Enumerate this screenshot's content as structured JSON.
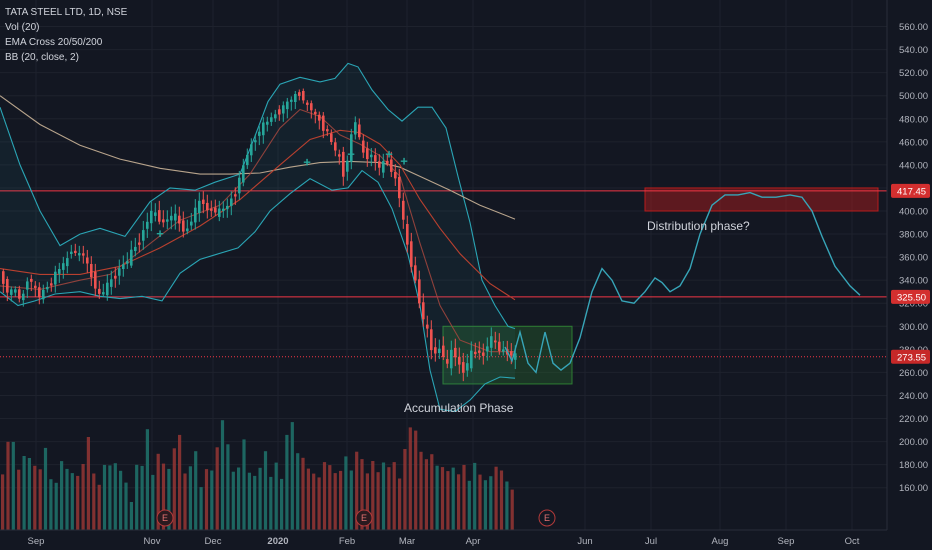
{
  "legend": {
    "symbol": "TATA STEEL LTD, 1D, NSE",
    "vol": "Vol (20)",
    "ema": "EMA Cross 20/50/200",
    "bb": "BB (20, close, 2)"
  },
  "colors": {
    "background": "#131722",
    "up": "#26a69a",
    "down": "#ef5350",
    "grid": "#1e222d",
    "axis_text": "#b2b5be",
    "bb_line": "#2aa5b5",
    "ema20": "#a5463e",
    "ema50": "#b8402f",
    "ema200": "#b8a48c",
    "level_line": "#f23645",
    "projection": "#37a5b8",
    "accumulation_box": "#2e7d32",
    "distribution_box": "#b71c1c"
  },
  "chart_data": {
    "type": "candlestick",
    "title": "TATA STEEL LTD, 1D, NSE",
    "y_axis": {
      "range": [
        145,
        570
      ],
      "ticks": [
        160,
        180,
        200,
        220,
        240,
        260,
        280,
        300,
        320,
        340,
        360,
        380,
        400,
        420,
        440,
        460,
        480,
        500,
        520,
        540,
        560
      ],
      "tick_labels": [
        "160.00",
        "180.00",
        "200.00",
        "220.00",
        "240.00",
        "260.00",
        "280.00",
        "300.00",
        "320.00",
        "340.00",
        "360.00",
        "380.00",
        "400.00",
        "420.00",
        "440.00",
        "460.00",
        "480.00",
        "500.00",
        "520.00",
        "540.00",
        "560.00"
      ]
    },
    "x_axis": {
      "labels": [
        "Sep",
        "Nov",
        "Dec",
        "2020",
        "Feb",
        "Mar",
        "Apr",
        "Jun",
        "Jul",
        "Aug",
        "Sep",
        "Oct"
      ]
    },
    "price_path": [
      [
        0,
        350
      ],
      [
        6,
        338
      ],
      [
        12,
        328
      ],
      [
        18,
        332
      ],
      [
        24,
        320
      ],
      [
        30,
        342
      ],
      [
        36,
        336
      ],
      [
        42,
        326
      ],
      [
        50,
        334
      ],
      [
        60,
        348
      ],
      [
        70,
        358
      ],
      [
        75,
        368
      ],
      [
        80,
        360
      ],
      [
        85,
        366
      ],
      [
        90,
        352
      ],
      [
        95,
        342
      ],
      [
        100,
        330
      ],
      [
        104,
        323
      ],
      [
        108,
        335
      ],
      [
        115,
        340
      ],
      [
        122,
        350
      ],
      [
        130,
        357
      ],
      [
        138,
        370
      ],
      [
        145,
        380
      ],
      [
        150,
        392
      ],
      [
        155,
        400
      ],
      [
        160,
        395
      ],
      [
        168,
        388
      ],
      [
        175,
        398
      ],
      [
        182,
        390
      ],
      [
        188,
        380
      ],
      [
        195,
        395
      ],
      [
        200,
        405
      ],
      [
        205,
        410
      ],
      [
        210,
        400
      ],
      [
        215,
        402
      ],
      [
        220,
        398
      ],
      [
        228,
        402
      ],
      [
        235,
        412
      ],
      [
        240,
        422
      ],
      [
        245,
        435
      ],
      [
        250,
        450
      ],
      [
        256,
        460
      ],
      [
        262,
        470
      ],
      [
        270,
        478
      ],
      [
        280,
        485
      ],
      [
        288,
        492
      ],
      [
        295,
        498
      ],
      [
        302,
        502
      ],
      [
        308,
        495
      ],
      [
        312,
        490
      ],
      [
        318,
        484
      ],
      [
        324,
        475
      ],
      [
        330,
        468
      ],
      [
        336,
        455
      ],
      [
        342,
        448
      ],
      [
        346,
        432
      ],
      [
        350,
        445
      ],
      [
        355,
        470
      ],
      [
        358,
        478
      ],
      [
        362,
        462
      ],
      [
        366,
        450
      ],
      [
        370,
        448
      ],
      [
        375,
        448
      ],
      [
        380,
        440
      ],
      [
        384,
        435
      ],
      [
        388,
        446
      ],
      [
        392,
        440
      ],
      [
        396,
        430
      ],
      [
        400,
        425
      ],
      [
        404,
        400
      ],
      [
        408,
        380
      ],
      [
        412,
        360
      ],
      [
        416,
        348
      ],
      [
        420,
        330
      ],
      [
        424,
        312
      ],
      [
        428,
        300
      ],
      [
        432,
        290
      ],
      [
        436,
        272
      ],
      [
        440,
        282
      ],
      [
        445,
        278
      ],
      [
        450,
        265
      ],
      [
        455,
        282
      ],
      [
        460,
        270
      ],
      [
        465,
        260
      ],
      [
        470,
        268
      ],
      [
        475,
        278
      ],
      [
        480,
        280
      ],
      [
        485,
        272
      ],
      [
        490,
        285
      ],
      [
        495,
        290
      ],
      [
        500,
        282
      ],
      [
        505,
        276
      ],
      [
        510,
        278
      ],
      [
        515,
        274
      ]
    ],
    "volume_scale_max": 4.4,
    "volume_heights_pct": [
      0.5,
      0.65,
      0.75,
      0.45,
      0.6,
      0.55,
      0.5,
      0.48,
      0.62,
      0.42,
      0.35,
      0.6,
      0.45,
      0.5,
      0.4,
      0.55,
      0.7,
      0.45,
      0.35,
      0.5,
      0.52,
      0.5,
      0.5,
      0.35,
      0.25,
      0.48,
      0.55,
      0.75,
      0.45,
      0.58,
      0.52,
      0.48,
      0.62,
      0.78,
      0.42,
      0.55,
      0.58,
      0.38,
      0.45,
      0.5,
      0.62,
      0.88,
      0.66,
      0.45,
      0.5,
      0.68,
      0.48,
      0.4,
      0.55,
      0.58,
      0.46,
      0.5,
      0.42,
      0.72,
      0.85,
      0.6,
      0.55,
      0.5,
      0.42,
      0.45,
      0.5,
      0.58,
      0.42,
      0.5,
      0.55,
      0.48,
      0.6,
      0.55,
      0.45,
      0.52,
      0.48,
      0.5,
      0.55,
      0.5,
      0.45,
      0.6,
      0.85,
      0.75,
      0.62,
      0.55,
      0.58,
      0.52,
      0.47,
      0.5,
      0.46,
      0.5,
      0.48,
      0.42,
      0.5,
      0.45,
      0.38,
      0.42,
      0.5,
      0.45,
      0.4,
      0.3
    ],
    "ema200_path": [
      [
        0,
        500
      ],
      [
        40,
        475
      ],
      [
        80,
        457
      ],
      [
        120,
        445
      ],
      [
        160,
        437
      ],
      [
        200,
        432
      ],
      [
        230,
        432
      ],
      [
        260,
        433
      ],
      [
        290,
        438
      ],
      [
        320,
        442
      ],
      [
        350,
        443
      ],
      [
        380,
        442
      ],
      [
        400,
        438
      ],
      [
        420,
        430
      ],
      [
        450,
        418
      ],
      [
        480,
        405
      ],
      [
        515,
        393
      ]
    ],
    "ema50_path": [
      [
        0,
        350
      ],
      [
        40,
        345
      ],
      [
        80,
        345
      ],
      [
        120,
        352
      ],
      [
        160,
        368
      ],
      [
        200,
        387
      ],
      [
        240,
        410
      ],
      [
        280,
        440
      ],
      [
        310,
        462
      ],
      [
        340,
        470
      ],
      [
        360,
        468
      ],
      [
        380,
        458
      ],
      [
        400,
        440
      ],
      [
        420,
        410
      ],
      [
        440,
        385
      ],
      [
        460,
        363
      ],
      [
        490,
        337
      ],
      [
        515,
        323
      ]
    ],
    "ema20_path": [
      [
        0,
        335
      ],
      [
        40,
        332
      ],
      [
        80,
        340
      ],
      [
        110,
        345
      ],
      [
        140,
        365
      ],
      [
        180,
        392
      ],
      [
        220,
        405
      ],
      [
        250,
        432
      ],
      [
        280,
        472
      ],
      [
        300,
        488
      ],
      [
        320,
        482
      ],
      [
        340,
        466
      ],
      [
        360,
        458
      ],
      [
        380,
        448
      ],
      [
        400,
        430
      ],
      [
        420,
        372
      ],
      [
        440,
        318
      ],
      [
        460,
        288
      ],
      [
        490,
        278
      ],
      [
        515,
        278
      ]
    ],
    "bb_upper_path": [
      [
        0,
        490
      ],
      [
        20,
        440
      ],
      [
        40,
        400
      ],
      [
        60,
        370
      ],
      [
        80,
        380
      ],
      [
        100,
        385
      ],
      [
        125,
        378
      ],
      [
        150,
        408
      ],
      [
        170,
        420
      ],
      [
        195,
        418
      ],
      [
        215,
        425
      ],
      [
        240,
        432
      ],
      [
        255,
        465
      ],
      [
        268,
        495
      ],
      [
        280,
        510
      ],
      [
        300,
        516
      ],
      [
        320,
        512
      ],
      [
        335,
        515
      ],
      [
        348,
        528
      ],
      [
        358,
        525
      ],
      [
        372,
        505
      ],
      [
        388,
        488
      ],
      [
        402,
        478
      ],
      [
        418,
        490
      ],
      [
        432,
        490
      ],
      [
        446,
        472
      ],
      [
        458,
        430
      ],
      [
        470,
        390
      ],
      [
        482,
        340
      ],
      [
        495,
        318
      ],
      [
        508,
        300
      ],
      [
        515,
        298
      ]
    ],
    "bb_lower_path": [
      [
        0,
        330
      ],
      [
        18,
        318
      ],
      [
        35,
        322
      ],
      [
        55,
        328
      ],
      [
        80,
        330
      ],
      [
        100,
        326
      ],
      [
        120,
        324
      ],
      [
        142,
        326
      ],
      [
        162,
        322
      ],
      [
        180,
        346
      ],
      [
        200,
        358
      ],
      [
        215,
        362
      ],
      [
        238,
        368
      ],
      [
        255,
        382
      ],
      [
        270,
        400
      ],
      [
        290,
        415
      ],
      [
        310,
        428
      ],
      [
        332,
        418
      ],
      [
        348,
        420
      ],
      [
        362,
        435
      ],
      [
        378,
        425
      ],
      [
        392,
        402
      ],
      [
        408,
        362
      ],
      [
        420,
        318
      ],
      [
        430,
        262
      ],
      [
        440,
        228
      ],
      [
        455,
        226
      ],
      [
        470,
        236
      ],
      [
        485,
        250
      ],
      [
        500,
        256
      ],
      [
        515,
        255
      ]
    ],
    "projection_path": [
      [
        505,
        282
      ],
      [
        512,
        270
      ],
      [
        520,
        295
      ],
      [
        528,
        268
      ],
      [
        536,
        260
      ],
      [
        545,
        295
      ],
      [
        553,
        268
      ],
      [
        561,
        262
      ],
      [
        570,
        268
      ],
      [
        580,
        290
      ],
      [
        592,
        330
      ],
      [
        602,
        350
      ],
      [
        612,
        340
      ],
      [
        622,
        322
      ],
      [
        634,
        320
      ],
      [
        645,
        330
      ],
      [
        655,
        342
      ],
      [
        662,
        338
      ],
      [
        670,
        330
      ],
      [
        680,
        335
      ],
      [
        690,
        350
      ],
      [
        700,
        380
      ],
      [
        712,
        405
      ],
      [
        725,
        414
      ],
      [
        738,
        414
      ],
      [
        750,
        416
      ],
      [
        762,
        412
      ],
      [
        776,
        412
      ],
      [
        790,
        414
      ],
      [
        802,
        412
      ],
      [
        812,
        400
      ],
      [
        822,
        378
      ],
      [
        835,
        352
      ],
      [
        850,
        335
      ],
      [
        860,
        327
      ]
    ],
    "ema_cross_markers": [
      [
        160,
        380
      ],
      [
        307,
        442
      ],
      [
        351,
        449
      ],
      [
        389,
        449
      ],
      [
        404,
        443
      ]
    ],
    "earnings_marker_label": "E",
    "earnings_markers_x": [
      165,
      364,
      547
    ],
    "horizontal_levels": [
      {
        "value": 417.45,
        "label": "417.45",
        "style": "solid"
      },
      {
        "value": 325.5,
        "label": "325.50",
        "style": "solid"
      },
      {
        "value": 273.55,
        "label": "273.55",
        "style": "dotted"
      }
    ],
    "zones": [
      {
        "name": "Accumulation Phase",
        "x0": 443,
        "x1": 572,
        "y_low": 250,
        "y_high": 300
      },
      {
        "name": "Distribution phase?",
        "x0": 645,
        "x1": 878,
        "y_low": 400,
        "y_high": 420
      }
    ]
  }
}
